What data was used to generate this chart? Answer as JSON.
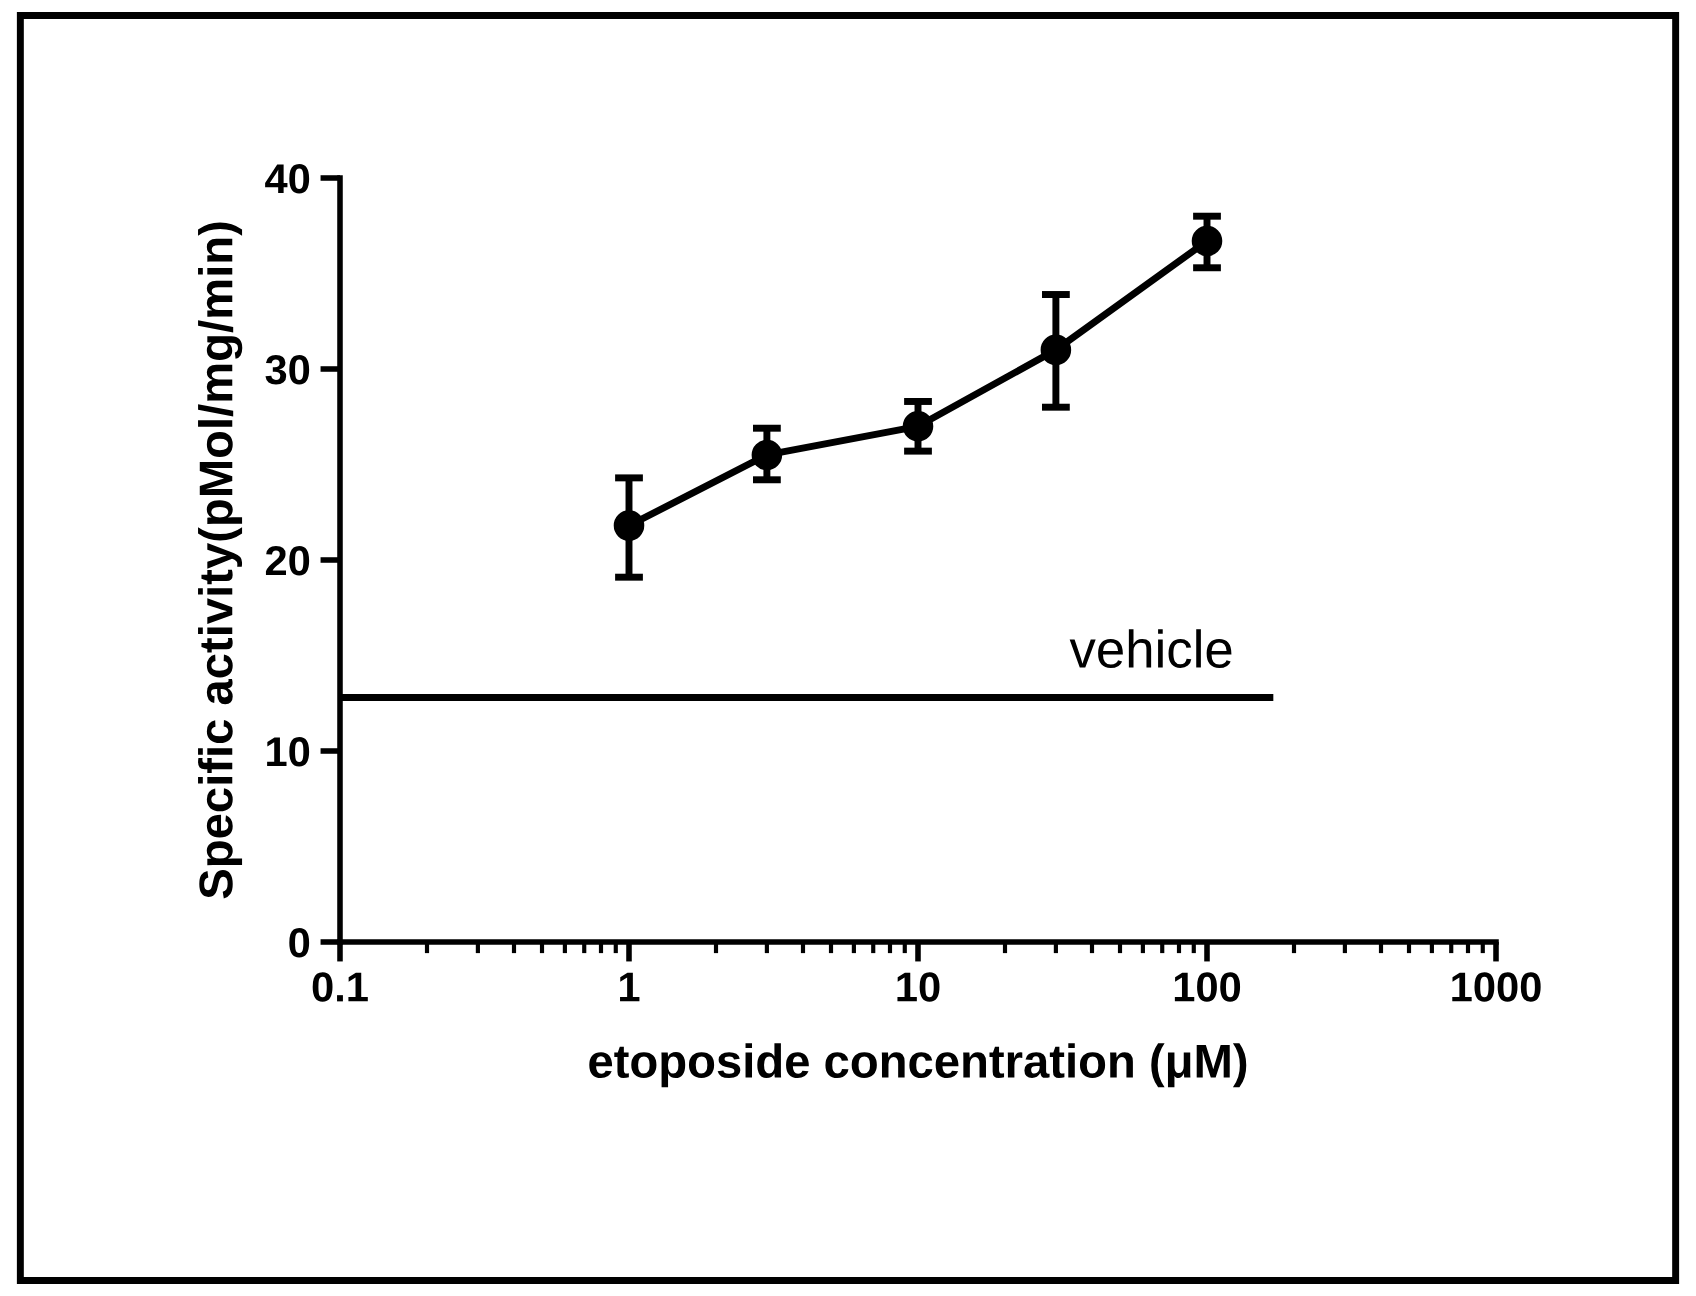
{
  "chart_data": {
    "type": "line",
    "xlabel": "etoposide concentration (μM)",
    "ylabel": "Specific activity(pMol/mg/min)",
    "series": [
      {
        "x": [
          1,
          3,
          10,
          30,
          100
        ],
        "values": [
          21.8,
          25.5,
          27.0,
          31.0,
          36.7
        ],
        "errors": [
          [
            19.1,
            24.3
          ],
          [
            24.2,
            26.9
          ],
          [
            25.7,
            28.3
          ],
          [
            28.0,
            33.9
          ],
          [
            35.3,
            38.0
          ]
        ],
        "color": "#000000",
        "marker": "circle",
        "line_style": "solid"
      },
      {
        "name": "vehicle",
        "x": [
          0.1,
          165
        ],
        "values": [
          12.8,
          12.8
        ],
        "color": "#000000",
        "marker": "none",
        "line_style": "solid"
      }
    ],
    "log": "x",
    "xlim": [
      0.1,
      1000
    ],
    "xticks": [
      0.1,
      1,
      10,
      100,
      1000
    ],
    "ylim": [
      0,
      40
    ],
    "yticks": [
      0,
      10,
      20,
      30,
      40
    ],
    "grid": false,
    "legend": false
  }
}
